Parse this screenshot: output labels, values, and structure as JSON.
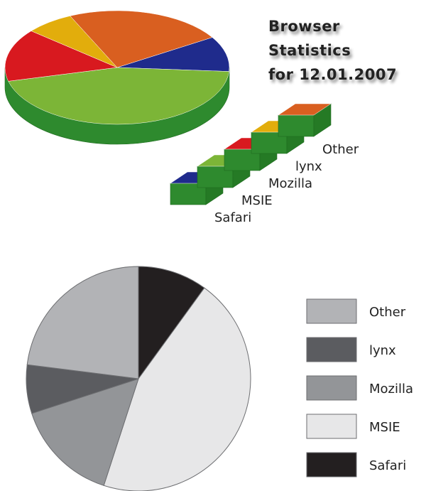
{
  "title": {
    "line1": "Browser Statistics",
    "line2": "for 12.01.2007"
  },
  "chart_data": [
    {
      "type": "pie",
      "style": "3d",
      "title": "Browser Statistics for 12.01.2007",
      "legend_placement": "bottom-right",
      "slices": [
        {
          "name": "Safari",
          "value": 10,
          "color": "#1f2b8c"
        },
        {
          "name": "MSIE",
          "value": 45,
          "color": "#7cb537"
        },
        {
          "name": "Mozilla",
          "value": 15,
          "color": "#d8191f"
        },
        {
          "name": "lynx",
          "value": 7,
          "color": "#e2ad0c"
        },
        {
          "name": "Other",
          "value": 23,
          "color": "#d95f20"
        }
      ],
      "side_color": "#2e8a2e"
    },
    {
      "type": "pie",
      "style": "flat-grayscale",
      "legend_placement": "right",
      "slices": [
        {
          "name": "Safari",
          "value": 10,
          "color": "#231f20"
        },
        {
          "name": "MSIE",
          "value": 45,
          "color": "#e7e7e8"
        },
        {
          "name": "Mozilla",
          "value": 15,
          "color": "#939598"
        },
        {
          "name": "lynx",
          "value": 7,
          "color": "#5b5c60"
        },
        {
          "name": "Other",
          "value": 23,
          "color": "#b2b3b6"
        }
      ],
      "legend_order": [
        "Other",
        "lynx",
        "Mozilla",
        "MSIE",
        "Safari"
      ]
    }
  ]
}
